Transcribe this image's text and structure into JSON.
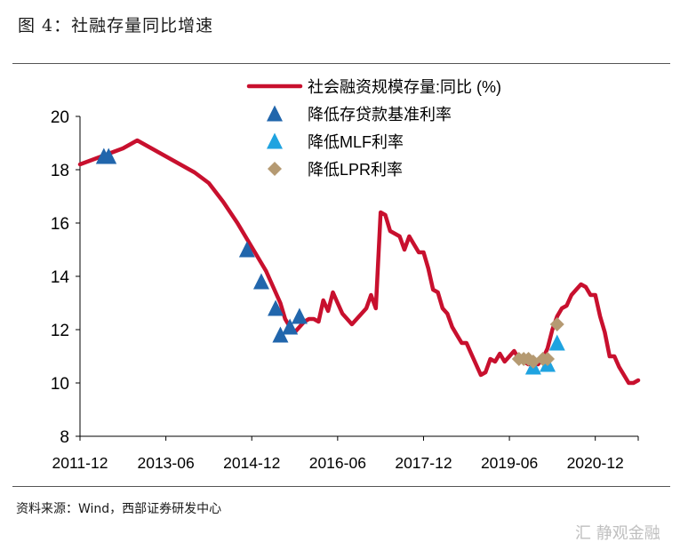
{
  "figure": {
    "title": "图 4：社融存量同比增速",
    "source": "资料来源：Wind，西部证券研发中心",
    "watermark": "汇 静观金融"
  },
  "colors": {
    "line": "#c8102e",
    "rrr_cut": "#2166ac",
    "mlf_cut": "#1fa3e0",
    "lpr_cut": "#b59a72",
    "axis": "#000000"
  },
  "chart_data": {
    "type": "line",
    "x_start": "2011-12",
    "x_end": "2021-09",
    "ylim": [
      8,
      20
    ],
    "yticks": [
      8,
      10,
      12,
      14,
      16,
      18,
      20
    ],
    "xtick_labels": [
      "2011-12",
      "2013-06",
      "2014-12",
      "2016-06",
      "2017-12",
      "2019-06",
      "2020-12"
    ],
    "legend": {
      "line": "社会融资规模存量:同比 (%)",
      "rrr_cut": "降低存贷款基准利率",
      "mlf_cut": "降低MLF利率",
      "lpr_cut": "降低LPR利率"
    },
    "series": [
      {
        "name": "社会融资规模存量:同比 (%)",
        "type": "line",
        "points": [
          [
            "2011-12",
            18.2
          ],
          [
            "2012-03",
            18.4
          ],
          [
            "2012-06",
            18.6
          ],
          [
            "2012-09",
            18.8
          ],
          [
            "2012-12",
            19.1
          ],
          [
            "2013-03",
            18.8
          ],
          [
            "2013-06",
            18.5
          ],
          [
            "2013-09",
            18.2
          ],
          [
            "2013-12",
            17.9
          ],
          [
            "2014-03",
            17.5
          ],
          [
            "2014-06",
            16.8
          ],
          [
            "2014-09",
            16.0
          ],
          [
            "2014-12",
            15.1
          ],
          [
            "2015-03",
            14.2
          ],
          [
            "2015-06",
            13.0
          ],
          [
            "2015-07",
            12.4
          ],
          [
            "2015-08",
            12.1
          ],
          [
            "2015-09",
            11.9
          ],
          [
            "2015-10",
            12.1
          ],
          [
            "2015-11",
            12.3
          ],
          [
            "2015-12",
            12.4
          ],
          [
            "2016-01",
            12.4
          ],
          [
            "2016-02",
            12.3
          ],
          [
            "2016-03",
            13.1
          ],
          [
            "2016-04",
            12.7
          ],
          [
            "2016-05",
            13.4
          ],
          [
            "2016-06",
            13.0
          ],
          [
            "2016-07",
            12.6
          ],
          [
            "2016-08",
            12.4
          ],
          [
            "2016-09",
            12.2
          ],
          [
            "2016-10",
            12.4
          ],
          [
            "2016-11",
            12.6
          ],
          [
            "2016-12",
            12.8
          ],
          [
            "2017-01",
            13.3
          ],
          [
            "2017-02",
            12.8
          ],
          [
            "2017-03",
            16.4
          ],
          [
            "2017-04",
            16.3
          ],
          [
            "2017-05",
            15.7
          ],
          [
            "2017-06",
            15.6
          ],
          [
            "2017-07",
            15.5
          ],
          [
            "2017-08",
            15.0
          ],
          [
            "2017-09",
            15.5
          ],
          [
            "2017-10",
            15.2
          ],
          [
            "2017-11",
            14.9
          ],
          [
            "2017-12",
            14.9
          ],
          [
            "2018-01",
            14.3
          ],
          [
            "2018-02",
            13.5
          ],
          [
            "2018-03",
            13.4
          ],
          [
            "2018-04",
            12.8
          ],
          [
            "2018-05",
            12.6
          ],
          [
            "2018-06",
            12.1
          ],
          [
            "2018-07",
            11.8
          ],
          [
            "2018-08",
            11.5
          ],
          [
            "2018-09",
            11.5
          ],
          [
            "2018-10",
            11.1
          ],
          [
            "2018-11",
            10.7
          ],
          [
            "2018-12",
            10.3
          ],
          [
            "2019-01",
            10.4
          ],
          [
            "2019-02",
            10.9
          ],
          [
            "2019-03",
            10.8
          ],
          [
            "2019-04",
            11.1
          ],
          [
            "2019-05",
            10.8
          ],
          [
            "2019-06",
            11.0
          ],
          [
            "2019-07",
            11.2
          ],
          [
            "2019-08",
            10.9
          ],
          [
            "2019-09",
            10.8
          ],
          [
            "2019-10",
            10.7
          ],
          [
            "2019-11",
            10.8
          ],
          [
            "2019-12",
            10.7
          ],
          [
            "2020-01",
            10.9
          ],
          [
            "2020-02",
            11.3
          ],
          [
            "2020-03",
            12.0
          ],
          [
            "2020-04",
            12.5
          ],
          [
            "2020-05",
            12.8
          ],
          [
            "2020-06",
            12.9
          ],
          [
            "2020-07",
            13.3
          ],
          [
            "2020-08",
            13.5
          ],
          [
            "2020-09",
            13.7
          ],
          [
            "2020-10",
            13.6
          ],
          [
            "2020-11",
            13.3
          ],
          [
            "2020-12",
            13.3
          ],
          [
            "2021-01",
            12.5
          ],
          [
            "2021-02",
            11.9
          ],
          [
            "2021-03",
            11.0
          ],
          [
            "2021-04",
            11.0
          ],
          [
            "2021-05",
            10.6
          ],
          [
            "2021-06",
            10.3
          ],
          [
            "2021-07",
            10.0
          ],
          [
            "2021-08",
            10.0
          ],
          [
            "2021-09",
            10.1
          ]
        ]
      },
      {
        "name": "降低存贷款基准利率",
        "type": "scatter",
        "marker": "triangle",
        "points": [
          [
            "2012-05",
            18.5
          ],
          [
            "2012-06",
            18.5
          ],
          [
            "2014-11",
            15.0
          ],
          [
            "2015-02",
            13.8
          ],
          [
            "2015-05",
            12.8
          ],
          [
            "2015-06",
            11.8
          ],
          [
            "2015-08",
            12.1
          ],
          [
            "2015-10",
            12.5
          ]
        ]
      },
      {
        "name": "降低MLF利率",
        "type": "scatter",
        "marker": "triangle",
        "points": [
          [
            "2019-11",
            10.6
          ],
          [
            "2020-02",
            10.7
          ],
          [
            "2020-04",
            11.5
          ]
        ]
      },
      {
        "name": "降低LPR利率",
        "type": "scatter",
        "marker": "diamond",
        "points": [
          [
            "2019-08",
            10.9
          ],
          [
            "2019-09",
            10.9
          ],
          [
            "2019-10",
            10.9
          ],
          [
            "2019-11",
            10.8
          ],
          [
            "2020-01",
            10.9
          ],
          [
            "2020-02",
            10.9
          ],
          [
            "2020-04",
            12.2
          ]
        ]
      }
    ]
  }
}
